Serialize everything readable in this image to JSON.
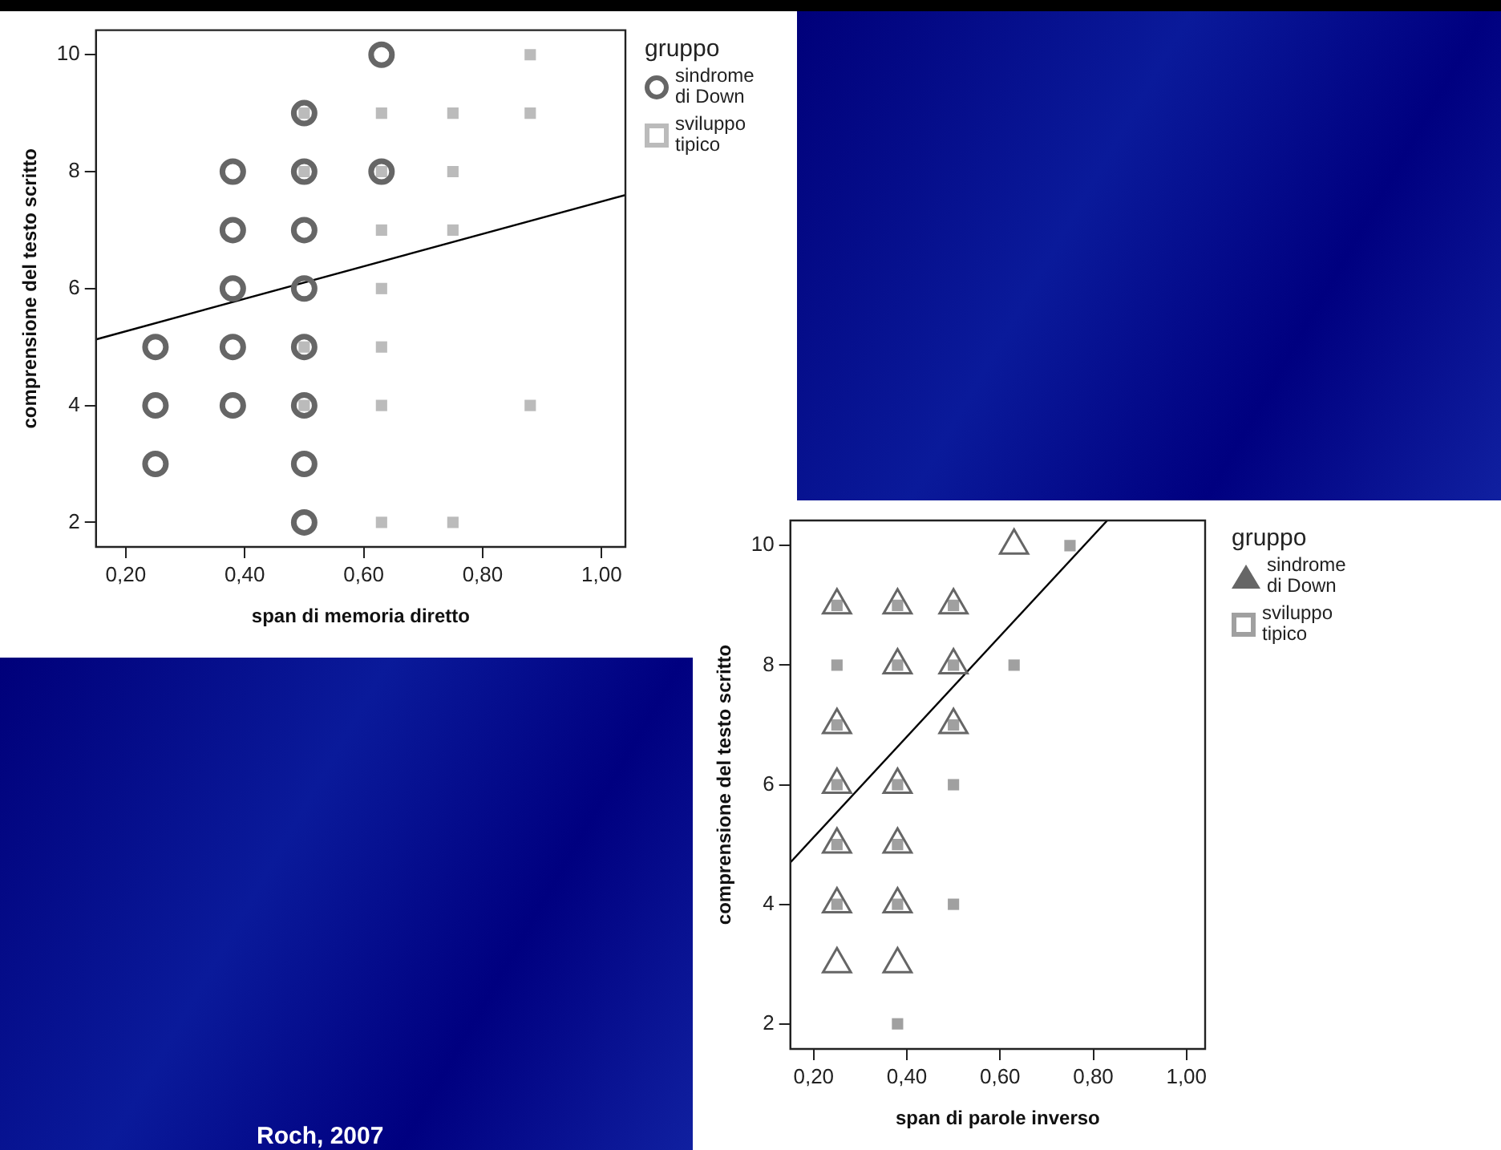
{
  "chart_data": [
    {
      "type": "scatter",
      "xlabel": "span di memoria diretto",
      "ylabel": "comprensione del testo scritto",
      "legend_title": "gruppo",
      "legend": "right",
      "grid": false,
      "xlim": [
        0.15,
        1.04
      ],
      "xticks": [
        {
          "value": 0.2,
          "label": "0,20"
        },
        {
          "value": 0.4,
          "label": "0,40"
        },
        {
          "value": 0.6,
          "label": "0,60"
        },
        {
          "value": 0.8,
          "label": "0,80"
        },
        {
          "value": 1.0,
          "label": "1,00"
        }
      ],
      "ylim": [
        1.58,
        10.42
      ],
      "yticks": [
        2,
        4,
        6,
        8,
        10
      ],
      "series": [
        {
          "name": "sindrome di Down",
          "color": "#666666",
          "marker": "circle",
          "x": [
            0.25,
            0.25,
            0.25,
            0.38,
            0.38,
            0.38,
            0.38,
            0.38,
            0.5,
            0.5,
            0.5,
            0.5,
            0.5,
            0.5,
            0.5,
            0.5,
            0.63,
            0.63
          ],
          "values": [
            5,
            4,
            3,
            8,
            7,
            6,
            5,
            4,
            9,
            8,
            7,
            6,
            5,
            4,
            3,
            2,
            10,
            8
          ]
        },
        {
          "name": "sviluppo tipico",
          "color": "#bbbbbb",
          "marker": "square",
          "x": [
            0.5,
            0.5,
            0.5,
            0.5,
            0.63,
            0.63,
            0.63,
            0.63,
            0.63,
            0.63,
            0.63,
            0.75,
            0.75,
            0.75,
            0.75,
            0.88,
            0.88,
            0.88
          ],
          "values": [
            9,
            8,
            5,
            4,
            9,
            8,
            7,
            6,
            5,
            4,
            2,
            9,
            8,
            7,
            2,
            10,
            9,
            4
          ]
        },
        {
          "type": "line",
          "color": "#000000",
          "marker": "none",
          "x": [
            0.15,
            1.04
          ],
          "values": [
            5.13,
            7.6
          ]
        }
      ],
      "annotations": [
        "Roch, 2007"
      ]
    },
    {
      "type": "scatter",
      "xlabel": "span di parole inverso",
      "ylabel": "comprensione del testo scritto",
      "legend_title": "gruppo",
      "legend": "right",
      "grid": false,
      "xlim": [
        0.15,
        1.04
      ],
      "xticks": [
        {
          "value": 0.2,
          "label": "0,20"
        },
        {
          "value": 0.4,
          "label": "0,40"
        },
        {
          "value": 0.6,
          "label": "0,60"
        },
        {
          "value": 0.8,
          "label": "0,80"
        },
        {
          "value": 1.0,
          "label": "1,00"
        }
      ],
      "ylim": [
        1.58,
        10.42
      ],
      "yticks": [
        2,
        4,
        6,
        8,
        10
      ],
      "series": [
        {
          "name": "sindrome di Down",
          "color": "#666666",
          "marker": "triangle",
          "x": [
            0.25,
            0.25,
            0.25,
            0.25,
            0.25,
            0.25,
            0.38,
            0.38,
            0.38,
            0.38,
            0.38,
            0.38,
            0.5,
            0.5,
            0.5,
            0.63
          ],
          "values": [
            9,
            7,
            6,
            5,
            4,
            3,
            9,
            8,
            6,
            5,
            4,
            3,
            9,
            8,
            7,
            10
          ]
        },
        {
          "name": "sviluppo tipico",
          "color": "#a0a0a0",
          "marker": "square",
          "x": [
            0.25,
            0.25,
            0.25,
            0.25,
            0.25,
            0.25,
            0.38,
            0.38,
            0.38,
            0.38,
            0.38,
            0.38,
            0.5,
            0.5,
            0.5,
            0.5,
            0.5,
            0.63,
            0.75
          ],
          "values": [
            9,
            8,
            7,
            6,
            5,
            4,
            9,
            8,
            6,
            5,
            4,
            2,
            9,
            8,
            7,
            6,
            4,
            8,
            10
          ]
        },
        {
          "type": "line",
          "color": "#000000",
          "marker": "none",
          "x": [
            0.15,
            0.83
          ],
          "values": [
            4.7,
            10.42
          ]
        }
      ]
    }
  ]
}
